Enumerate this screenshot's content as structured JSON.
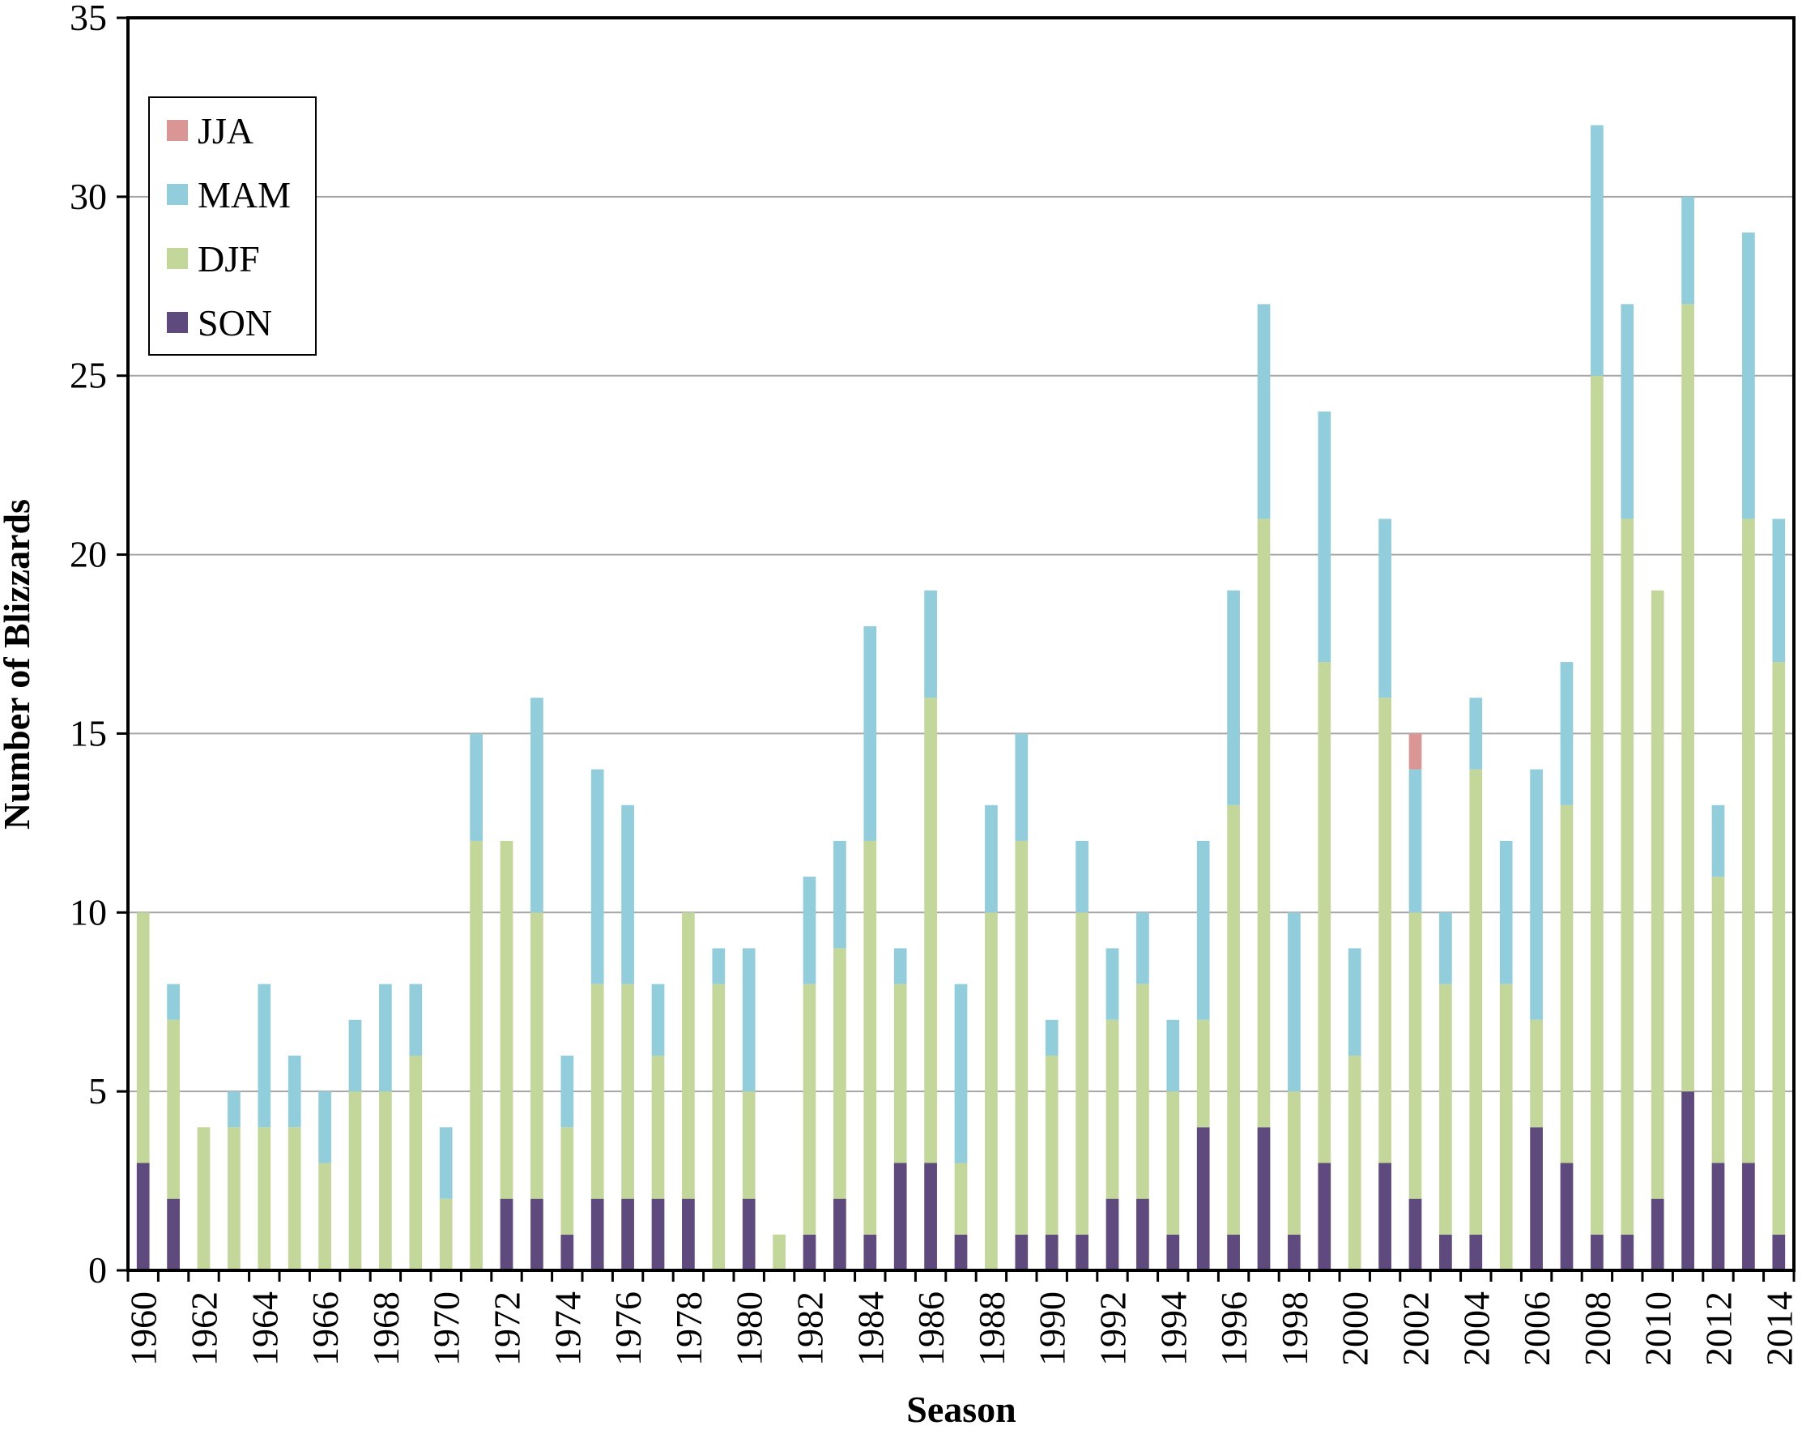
{
  "chart_data": {
    "type": "bar",
    "stacked": true,
    "title": "",
    "xlabel": "Season",
    "ylabel": "Number of Blizzards",
    "ylim": [
      0,
      35
    ],
    "yticks": [
      "0",
      "5",
      "10",
      "15",
      "20",
      "25",
      "30",
      "35"
    ],
    "grid": "horizontal",
    "legend_position": "top-left",
    "categories": [
      "1960",
      "1961",
      "1962",
      "1963",
      "1964",
      "1965",
      "1966",
      "1967",
      "1968",
      "1969",
      "1970",
      "1971",
      "1972",
      "1973",
      "1974",
      "1975",
      "1976",
      "1977",
      "1978",
      "1979",
      "1980",
      "1981",
      "1982",
      "1983",
      "1984",
      "1985",
      "1986",
      "1987",
      "1988",
      "1989",
      "1990",
      "1991",
      "1992",
      "1993",
      "1994",
      "1995",
      "1996",
      "1997",
      "1998",
      "1999",
      "2000",
      "2001",
      "2002",
      "2003",
      "2004",
      "2005",
      "2006",
      "2007",
      "2008",
      "2009",
      "2010",
      "2011",
      "2012",
      "2013",
      "2014"
    ],
    "xtick_labels": [
      "1960",
      "",
      "1962",
      "",
      "1964",
      "",
      "1966",
      "",
      "1968",
      "",
      "1970",
      "",
      "1972",
      "",
      "1974",
      "",
      "1976",
      "",
      "1978",
      "",
      "1980",
      "",
      "1982",
      "",
      "1984",
      "",
      "1986",
      "",
      "1988",
      "",
      "1990",
      "",
      "1992",
      "",
      "1994",
      "",
      "1996",
      "",
      "1998",
      "",
      "2000",
      "",
      "2002",
      "",
      "2004",
      "",
      "2006",
      "",
      "2008",
      "",
      "2010",
      "",
      "2012",
      "",
      "2014"
    ],
    "series": [
      {
        "name": "SON",
        "color": "#5f4a7d",
        "values": [
          3,
          2,
          0,
          0,
          0,
          0,
          0,
          0,
          0,
          0,
          0,
          0,
          2,
          2,
          1,
          2,
          2,
          2,
          2,
          0,
          2,
          0,
          1,
          2,
          1,
          3,
          3,
          1,
          0,
          1,
          1,
          1,
          2,
          2,
          1,
          4,
          1,
          4,
          1,
          3,
          0,
          3,
          2,
          1,
          1,
          0,
          4,
          3,
          1,
          1,
          2,
          5,
          3,
          3,
          1
        ]
      },
      {
        "name": "DJF",
        "color": "#c4d79b",
        "values": [
          7,
          5,
          4,
          4,
          4,
          4,
          3,
          5,
          5,
          6,
          2,
          12,
          10,
          8,
          3,
          6,
          6,
          4,
          8,
          8,
          3,
          1,
          7,
          7,
          11,
          5,
          13,
          2,
          10,
          11,
          5,
          9,
          5,
          6,
          4,
          3,
          12,
          17,
          4,
          14,
          6,
          13,
          8,
          7,
          13,
          8,
          3,
          10,
          24,
          20,
          17,
          22,
          8,
          18,
          16
        ]
      },
      {
        "name": "MAM",
        "color": "#92cddc",
        "values": [
          0,
          1,
          0,
          1,
          4,
          2,
          2,
          2,
          3,
          2,
          2,
          3,
          0,
          6,
          2,
          6,
          5,
          2,
          0,
          1,
          4,
          0,
          3,
          3,
          6,
          1,
          3,
          5,
          3,
          3,
          1,
          2,
          2,
          2,
          2,
          5,
          6,
          6,
          5,
          7,
          3,
          5,
          4,
          2,
          2,
          4,
          7,
          4,
          7,
          6,
          0,
          3,
          2,
          8,
          4
        ]
      },
      {
        "name": "JJA",
        "color": "#da9694",
        "values": [
          0,
          0,
          0,
          0,
          0,
          0,
          0,
          0,
          0,
          0,
          0,
          0,
          0,
          0,
          0,
          0,
          0,
          0,
          0,
          0,
          0,
          0,
          0,
          0,
          0,
          0,
          0,
          0,
          0,
          0,
          0,
          0,
          0,
          0,
          0,
          0,
          0,
          0,
          0,
          0,
          0,
          0,
          1,
          0,
          0,
          0,
          0,
          0,
          0,
          0,
          0,
          0,
          0,
          0,
          0
        ]
      }
    ],
    "legend": [
      {
        "name": "JJA",
        "color": "#da9694"
      },
      {
        "name": "MAM",
        "color": "#92cddc"
      },
      {
        "name": "DJF",
        "color": "#c4d79b"
      },
      {
        "name": "SON",
        "color": "#5f4a7d"
      }
    ]
  }
}
